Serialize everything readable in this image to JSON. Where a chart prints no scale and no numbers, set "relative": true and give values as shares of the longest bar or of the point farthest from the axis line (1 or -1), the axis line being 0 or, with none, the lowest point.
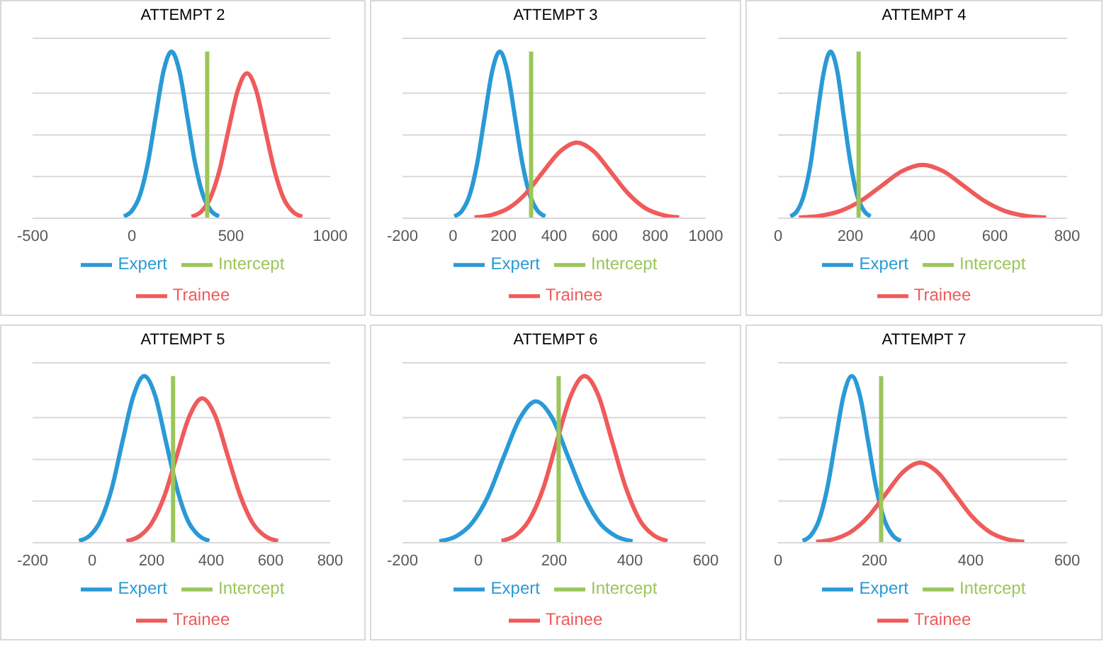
{
  "chart_data": [
    {
      "type": "line",
      "title": "ATTEMPT 2",
      "xlim": [
        -500,
        1000
      ],
      "xticks": [
        -500,
        0,
        500,
        1000
      ],
      "relative": true,
      "grid": "y",
      "legend": "bottom",
      "series": [
        {
          "name": "Expert",
          "color": "#2a9ad6",
          "x": [
            -40,
            0,
            40,
            80,
            120,
            160,
            200,
            240,
            280,
            320,
            360,
            400,
            440
          ],
          "values": [
            0.011,
            0.044,
            0.135,
            0.325,
            0.607,
            0.882,
            1,
            0.882,
            0.607,
            0.325,
            0.135,
            0.044,
            0.011
          ]
        },
        {
          "name": "Trainee",
          "color": "#ef5b5b",
          "x": [
            301,
            348,
            394,
            441,
            487,
            534,
            580,
            627,
            673,
            720,
            766,
            813,
            859
          ],
          "values": [
            0.01,
            0.038,
            0.117,
            0.283,
            0.528,
            0.767,
            0.87,
            0.767,
            0.528,
            0.283,
            0.117,
            0.038,
            0.01
          ]
        },
        {
          "name": "Intercept",
          "color": "#9bc65a",
          "x": [
            380,
            380
          ],
          "values": [
            0,
            1
          ]
        }
      ]
    },
    {
      "type": "line",
      "title": "ATTEMPT 3",
      "xlim": [
        -200,
        1000
      ],
      "xticks": [
        -200,
        0,
        200,
        400,
        600,
        800,
        1000
      ],
      "relative": true,
      "grid": "y",
      "legend": "bottom",
      "series": [
        {
          "name": "Expert",
          "color": "#2a9ad6",
          "x": [
            5,
            35,
            65,
            95,
            125,
            155,
            185,
            215,
            245,
            275,
            305,
            335,
            365
          ],
          "values": [
            0.011,
            0.044,
            0.135,
            0.325,
            0.607,
            0.882,
            1,
            0.882,
            0.607,
            0.325,
            0.135,
            0.044,
            0.011
          ]
        },
        {
          "name": "Trainee",
          "color": "#ef5b5b",
          "x": [
            85,
            153,
            220,
            288,
            355,
            423,
            490,
            558,
            625,
            693,
            760,
            828,
            895
          ],
          "values": [
            0.005,
            0.02,
            0.061,
            0.148,
            0.276,
            0.4,
            0.454,
            0.4,
            0.276,
            0.148,
            0.061,
            0.02,
            0.005
          ]
        },
        {
          "name": "Intercept",
          "color": "#9bc65a",
          "x": [
            309,
            309
          ],
          "values": [
            0,
            1
          ]
        }
      ]
    },
    {
      "type": "line",
      "title": "ATTEMPT 4",
      "xlim": [
        0,
        800
      ],
      "xticks": [
        0,
        200,
        400,
        600,
        800
      ],
      "relative": true,
      "grid": "y",
      "legend": "bottom",
      "series": [
        {
          "name": "Expert",
          "color": "#2a9ad6",
          "x": [
            34,
            53,
            71,
            90,
            108,
            127,
            145,
            164,
            182,
            201,
            219,
            238,
            256
          ],
          "values": [
            0.011,
            0.044,
            0.135,
            0.325,
            0.607,
            0.882,
            1,
            0.882,
            0.607,
            0.325,
            0.135,
            0.044,
            0.011
          ]
        },
        {
          "name": "Trainee",
          "color": "#ef5b5b",
          "x": [
            58,
            115,
            172,
            229,
            286,
            343,
            400,
            457,
            514,
            571,
            628,
            685,
            742
          ],
          "values": [
            0.004,
            0.014,
            0.043,
            0.104,
            0.194,
            0.282,
            0.32,
            0.282,
            0.194,
            0.104,
            0.043,
            0.014,
            0.004
          ]
        },
        {
          "name": "Intercept",
          "color": "#9bc65a",
          "x": [
            223,
            223
          ],
          "values": [
            0,
            1
          ]
        }
      ]
    },
    {
      "type": "line",
      "title": "ATTEMPT 5",
      "xlim": [
        -200,
        800
      ],
      "xticks": [
        -200,
        0,
        200,
        400,
        600,
        800
      ],
      "relative": true,
      "grid": "y",
      "legend": "bottom",
      "series": [
        {
          "name": "Expert",
          "color": "#2a9ad6",
          "x": [
            -44,
            -7,
            29,
            66,
            102,
            139,
            175,
            212,
            248,
            285,
            321,
            358,
            394
          ],
          "values": [
            0.011,
            0.044,
            0.135,
            0.325,
            0.607,
            0.882,
            1,
            0.882,
            0.607,
            0.325,
            0.135,
            0.044,
            0.011
          ]
        },
        {
          "name": "Trainee",
          "color": "#ef5b5b",
          "x": [
            115,
            158,
            200,
            243,
            285,
            328,
            370,
            413,
            455,
            498,
            540,
            583,
            625
          ],
          "values": [
            0.01,
            0.038,
            0.117,
            0.281,
            0.526,
            0.764,
            0.866,
            0.764,
            0.526,
            0.281,
            0.117,
            0.038,
            0.01
          ]
        },
        {
          "name": "Intercept",
          "color": "#9bc65a",
          "x": [
            272,
            272
          ],
          "values": [
            0,
            1
          ]
        }
      ]
    },
    {
      "type": "line",
      "title": "ATTEMPT 6",
      "xlim": [
        -200,
        600
      ],
      "xticks": [
        -200,
        0,
        200,
        400,
        600
      ],
      "relative": true,
      "grid": "y",
      "legend": "bottom",
      "series": [
        {
          "name": "Expert",
          "color": "#2a9ad6",
          "x": [
            -103,
            -60,
            -18,
            25,
            67,
            110,
            152,
            195,
            237,
            280,
            322,
            365,
            407
          ],
          "values": [
            0.009,
            0.037,
            0.114,
            0.276,
            0.515,
            0.748,
            0.848,
            0.748,
            0.515,
            0.276,
            0.114,
            0.037,
            0.009
          ]
        },
        {
          "name": "Trainee",
          "color": "#ef5b5b",
          "x": [
            61,
            98,
            134,
            171,
            207,
            244,
            280,
            317,
            353,
            390,
            426,
            463,
            499
          ],
          "values": [
            0.011,
            0.044,
            0.135,
            0.325,
            0.607,
            0.882,
            1,
            0.882,
            0.607,
            0.325,
            0.135,
            0.044,
            0.011
          ]
        },
        {
          "name": "Intercept",
          "color": "#9bc65a",
          "x": [
            212,
            212
          ],
          "values": [
            0,
            1
          ]
        }
      ]
    },
    {
      "type": "line",
      "title": "ATTEMPT 7",
      "xlim": [
        0,
        600
      ],
      "xticks": [
        0,
        200,
        400,
        600
      ],
      "relative": true,
      "grid": "y",
      "legend": "bottom",
      "series": [
        {
          "name": "Expert",
          "color": "#2a9ad6",
          "x": [
            51,
            68,
            85,
            102,
            119,
            136,
            153,
            170,
            187,
            204,
            221,
            238,
            255
          ],
          "values": [
            0.011,
            0.044,
            0.135,
            0.325,
            0.607,
            0.882,
            1,
            0.882,
            0.607,
            0.325,
            0.135,
            0.044,
            0.011
          ]
        },
        {
          "name": "Trainee",
          "color": "#ef5b5b",
          "x": [
            79,
            115,
            151,
            187,
            223,
            259,
            295,
            331,
            367,
            403,
            439,
            475,
            511
          ],
          "values": [
            0.005,
            0.021,
            0.065,
            0.156,
            0.291,
            0.423,
            0.48,
            0.423,
            0.291,
            0.156,
            0.065,
            0.021,
            0.005
          ]
        },
        {
          "name": "Intercept",
          "color": "#9bc65a",
          "x": [
            214,
            214
          ],
          "values": [
            0,
            1
          ]
        }
      ]
    }
  ]
}
